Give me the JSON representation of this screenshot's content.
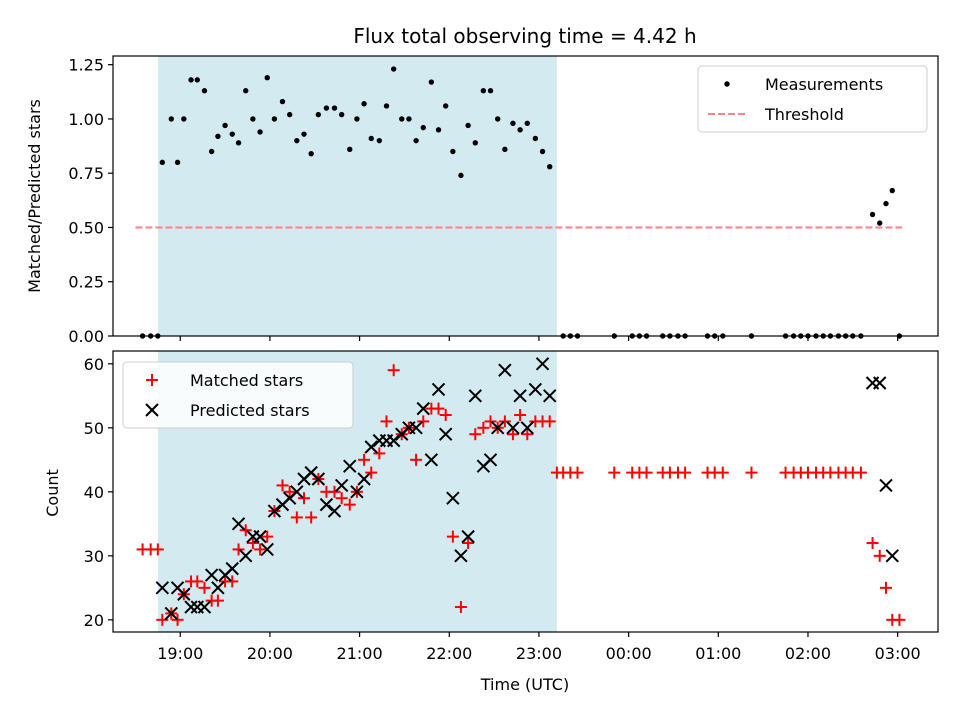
{
  "chart_data": [
    {
      "type": "scatter",
      "title": "Flux total observing time = 4.42 h",
      "xlabel": "",
      "ylabel": "Matched/Predicted stars",
      "ylim": [
        0,
        1.29
      ],
      "yticks": [
        "0.00",
        "0.25",
        "0.50",
        "0.75",
        "1.00",
        "1.25"
      ],
      "legend": {
        "position": "top-right",
        "entries": [
          "Measurements",
          "Threshold"
        ]
      },
      "shaded_region": {
        "x_start": 18.75,
        "x_end": 23.2,
        "color": "#d4eaf1"
      },
      "threshold": {
        "name": "Threshold",
        "y": 0.5,
        "x_start": 18.5,
        "x_end": 27.05,
        "color": "#ff8080"
      },
      "series": [
        {
          "name": "Measurements",
          "color": "#000000",
          "points": [
            [
              18.58,
              0
            ],
            [
              18.67,
              0
            ],
            [
              18.75,
              0
            ],
            [
              18.8,
              0.8
            ],
            [
              18.9,
              1.0
            ],
            [
              18.97,
              0.8
            ],
            [
              19.04,
              1.0
            ],
            [
              19.12,
              1.18
            ],
            [
              19.19,
              1.18
            ],
            [
              19.27,
              1.13
            ],
            [
              19.35,
              0.85
            ],
            [
              19.42,
              0.92
            ],
            [
              19.5,
              0.97
            ],
            [
              19.58,
              0.93
            ],
            [
              19.65,
              0.89
            ],
            [
              19.73,
              1.13
            ],
            [
              19.81,
              1.0
            ],
            [
              19.89,
              0.94
            ],
            [
              19.97,
              1.19
            ],
            [
              20.05,
              1.0
            ],
            [
              20.14,
              1.08
            ],
            [
              20.22,
              1.02
            ],
            [
              20.3,
              0.9
            ],
            [
              20.38,
              0.93
            ],
            [
              20.46,
              0.84
            ],
            [
              20.54,
              1.02
            ],
            [
              20.63,
              1.05
            ],
            [
              20.72,
              1.05
            ],
            [
              20.8,
              1.02
            ],
            [
              20.89,
              0.86
            ],
            [
              20.97,
              1.0
            ],
            [
              21.05,
              1.07
            ],
            [
              21.13,
              0.91
            ],
            [
              21.22,
              0.9
            ],
            [
              21.3,
              1.06
            ],
            [
              21.38,
              1.23
            ],
            [
              21.47,
              1.0
            ],
            [
              21.55,
              1.0
            ],
            [
              21.63,
              0.9
            ],
            [
              21.71,
              0.96
            ],
            [
              21.8,
              1.17
            ],
            [
              21.88,
              0.95
            ],
            [
              21.96,
              1.06
            ],
            [
              22.04,
              0.85
            ],
            [
              22.13,
              0.74
            ],
            [
              22.21,
              0.97
            ],
            [
              22.29,
              0.89
            ],
            [
              22.38,
              1.13
            ],
            [
              22.46,
              1.13
            ],
            [
              22.54,
              1.0
            ],
            [
              22.62,
              0.86
            ],
            [
              22.71,
              0.98
            ],
            [
              22.79,
              0.95
            ],
            [
              22.87,
              0.98
            ],
            [
              22.96,
              0.91
            ],
            [
              23.04,
              0.85
            ],
            [
              23.12,
              0.78
            ],
            [
              23.27,
              0
            ],
            [
              23.35,
              0
            ],
            [
              23.43,
              0
            ],
            [
              23.84,
              0
            ],
            [
              24.04,
              0
            ],
            [
              24.12,
              0
            ],
            [
              24.2,
              0
            ],
            [
              24.38,
              0
            ],
            [
              24.46,
              0
            ],
            [
              24.55,
              0
            ],
            [
              24.63,
              0
            ],
            [
              24.88,
              0
            ],
            [
              24.96,
              0
            ],
            [
              25.05,
              0
            ],
            [
              25.37,
              0
            ],
            [
              25.75,
              0
            ],
            [
              25.84,
              0
            ],
            [
              25.92,
              0
            ],
            [
              26.0,
              0
            ],
            [
              26.09,
              0
            ],
            [
              26.17,
              0
            ],
            [
              26.25,
              0
            ],
            [
              26.34,
              0
            ],
            [
              26.42,
              0
            ],
            [
              26.5,
              0
            ],
            [
              26.59,
              0
            ],
            [
              26.72,
              0.56
            ],
            [
              26.8,
              0.52
            ],
            [
              26.87,
              0.61
            ],
            [
              26.94,
              0.67
            ],
            [
              27.02,
              0
            ]
          ]
        }
      ]
    },
    {
      "type": "scatter",
      "title": "",
      "xlabel": "Time (UTC)",
      "ylabel": "Count",
      "ylim": [
        18.1,
        62
      ],
      "yticks": [
        "20",
        "30",
        "40",
        "50",
        "60"
      ],
      "xlim": [
        18.25,
        27.45
      ],
      "xticks": [
        "19:00",
        "20:00",
        "21:00",
        "22:00",
        "23:00",
        "00:00",
        "01:00",
        "02:00",
        "03:00"
      ],
      "legend": {
        "position": "top-left",
        "entries": [
          "Matched stars",
          "Predicted stars"
        ]
      },
      "shaded_region": {
        "x_start": 18.75,
        "x_end": 23.2,
        "color": "#d4eaf1"
      },
      "series": [
        {
          "name": "Matched stars",
          "marker": "plus",
          "color": "#ff0000",
          "points": [
            [
              18.58,
              31
            ],
            [
              18.67,
              31
            ],
            [
              18.75,
              31
            ],
            [
              18.8,
              20
            ],
            [
              18.9,
              21
            ],
            [
              18.97,
              20
            ],
            [
              19.04,
              24
            ],
            [
              19.12,
              26
            ],
            [
              19.19,
              26
            ],
            [
              19.27,
              25
            ],
            [
              19.35,
              23
            ],
            [
              19.42,
              23
            ],
            [
              19.5,
              26
            ],
            [
              19.58,
              26
            ],
            [
              19.65,
              31
            ],
            [
              19.73,
              34
            ],
            [
              19.81,
              32
            ],
            [
              19.89,
              31
            ],
            [
              19.97,
              33
            ],
            [
              20.05,
              37
            ],
            [
              20.14,
              41
            ],
            [
              20.22,
              40
            ],
            [
              20.3,
              36
            ],
            [
              20.38,
              39
            ],
            [
              20.46,
              36
            ],
            [
              20.54,
              42
            ],
            [
              20.63,
              40
            ],
            [
              20.72,
              40
            ],
            [
              20.8,
              39
            ],
            [
              20.89,
              38
            ],
            [
              20.97,
              40
            ],
            [
              21.05,
              45
            ],
            [
              21.13,
              43
            ],
            [
              21.22,
              46
            ],
            [
              21.3,
              51
            ],
            [
              21.38,
              59
            ],
            [
              21.47,
              49
            ],
            [
              21.55,
              50
            ],
            [
              21.63,
              45
            ],
            [
              21.71,
              51
            ],
            [
              21.8,
              53
            ],
            [
              21.88,
              53
            ],
            [
              21.96,
              52
            ],
            [
              22.04,
              33
            ],
            [
              22.13,
              22
            ],
            [
              22.21,
              32
            ],
            [
              22.29,
              49
            ],
            [
              22.38,
              50
            ],
            [
              22.46,
              51
            ],
            [
              22.54,
              50
            ],
            [
              22.62,
              51
            ],
            [
              22.71,
              49
            ],
            [
              22.79,
              52
            ],
            [
              22.87,
              49
            ],
            [
              22.96,
              51
            ],
            [
              23.04,
              51
            ],
            [
              23.12,
              51
            ],
            [
              23.2,
              43
            ],
            [
              23.27,
              43
            ],
            [
              23.35,
              43
            ],
            [
              23.43,
              43
            ],
            [
              23.84,
              43
            ],
            [
              24.04,
              43
            ],
            [
              24.12,
              43
            ],
            [
              24.2,
              43
            ],
            [
              24.38,
              43
            ],
            [
              24.46,
              43
            ],
            [
              24.55,
              43
            ],
            [
              24.63,
              43
            ],
            [
              24.88,
              43
            ],
            [
              24.96,
              43
            ],
            [
              25.05,
              43
            ],
            [
              25.37,
              43
            ],
            [
              25.75,
              43
            ],
            [
              25.84,
              43
            ],
            [
              25.92,
              43
            ],
            [
              26.0,
              43
            ],
            [
              26.09,
              43
            ],
            [
              26.17,
              43
            ],
            [
              26.25,
              43
            ],
            [
              26.34,
              43
            ],
            [
              26.42,
              43
            ],
            [
              26.5,
              43
            ],
            [
              26.59,
              43
            ],
            [
              26.72,
              32
            ],
            [
              26.8,
              30
            ],
            [
              26.87,
              25
            ],
            [
              26.94,
              20
            ],
            [
              27.02,
              20
            ]
          ]
        },
        {
          "name": "Predicted stars",
          "marker": "x",
          "color": "#000000",
          "points": [
            [
              18.8,
              25
            ],
            [
              18.9,
              21
            ],
            [
              18.97,
              25
            ],
            [
              19.04,
              24
            ],
            [
              19.12,
              22
            ],
            [
              19.19,
              22
            ],
            [
              19.27,
              22
            ],
            [
              19.35,
              27
            ],
            [
              19.42,
              25
            ],
            [
              19.5,
              27
            ],
            [
              19.58,
              28
            ],
            [
              19.65,
              35
            ],
            [
              19.73,
              30
            ],
            [
              19.81,
              33
            ],
            [
              19.89,
              33
            ],
            [
              19.97,
              31
            ],
            [
              20.05,
              37
            ],
            [
              20.14,
              38
            ],
            [
              20.22,
              39
            ],
            [
              20.3,
              40
            ],
            [
              20.38,
              42
            ],
            [
              20.46,
              43
            ],
            [
              20.54,
              42
            ],
            [
              20.63,
              38
            ],
            [
              20.72,
              37
            ],
            [
              20.8,
              41
            ],
            [
              20.89,
              44
            ],
            [
              20.97,
              40
            ],
            [
              21.05,
              42
            ],
            [
              21.13,
              47
            ],
            [
              21.22,
              48
            ],
            [
              21.3,
              48
            ],
            [
              21.38,
              48
            ],
            [
              21.47,
              49
            ],
            [
              21.55,
              50
            ],
            [
              21.63,
              50
            ],
            [
              21.71,
              53
            ],
            [
              21.8,
              45
            ],
            [
              21.88,
              56
            ],
            [
              21.96,
              49
            ],
            [
              22.04,
              39
            ],
            [
              22.13,
              30
            ],
            [
              22.21,
              33
            ],
            [
              22.29,
              55
            ],
            [
              22.38,
              44
            ],
            [
              22.46,
              45
            ],
            [
              22.54,
              50
            ],
            [
              22.62,
              59
            ],
            [
              22.71,
              50
            ],
            [
              22.79,
              55
            ],
            [
              22.87,
              50
            ],
            [
              22.96,
              56
            ],
            [
              23.04,
              60
            ],
            [
              23.12,
              55
            ],
            [
              26.72,
              57
            ],
            [
              26.8,
              57
            ],
            [
              26.87,
              41
            ],
            [
              26.94,
              30
            ]
          ]
        }
      ]
    }
  ]
}
